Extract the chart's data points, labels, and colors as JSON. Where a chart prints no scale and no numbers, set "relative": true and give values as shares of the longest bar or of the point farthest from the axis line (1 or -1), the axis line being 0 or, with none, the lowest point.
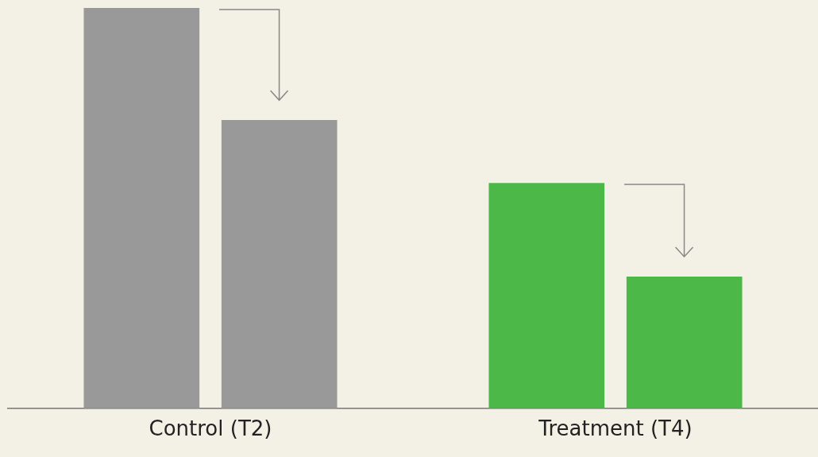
{
  "chart_data": {
    "type": "bar",
    "relative": true,
    "categories": [
      "Control (T2)",
      "Treatment (T4)"
    ],
    "series": [
      {
        "colors": [
          "#999999",
          "#4cb848"
        ],
        "values": [
          1,
          0.563
        ]
      },
      {
        "colors": [
          "#999999",
          "#4cb848"
        ],
        "values": [
          0.72,
          0.329
        ]
      }
    ],
    "grid": false,
    "legend": false
  }
}
